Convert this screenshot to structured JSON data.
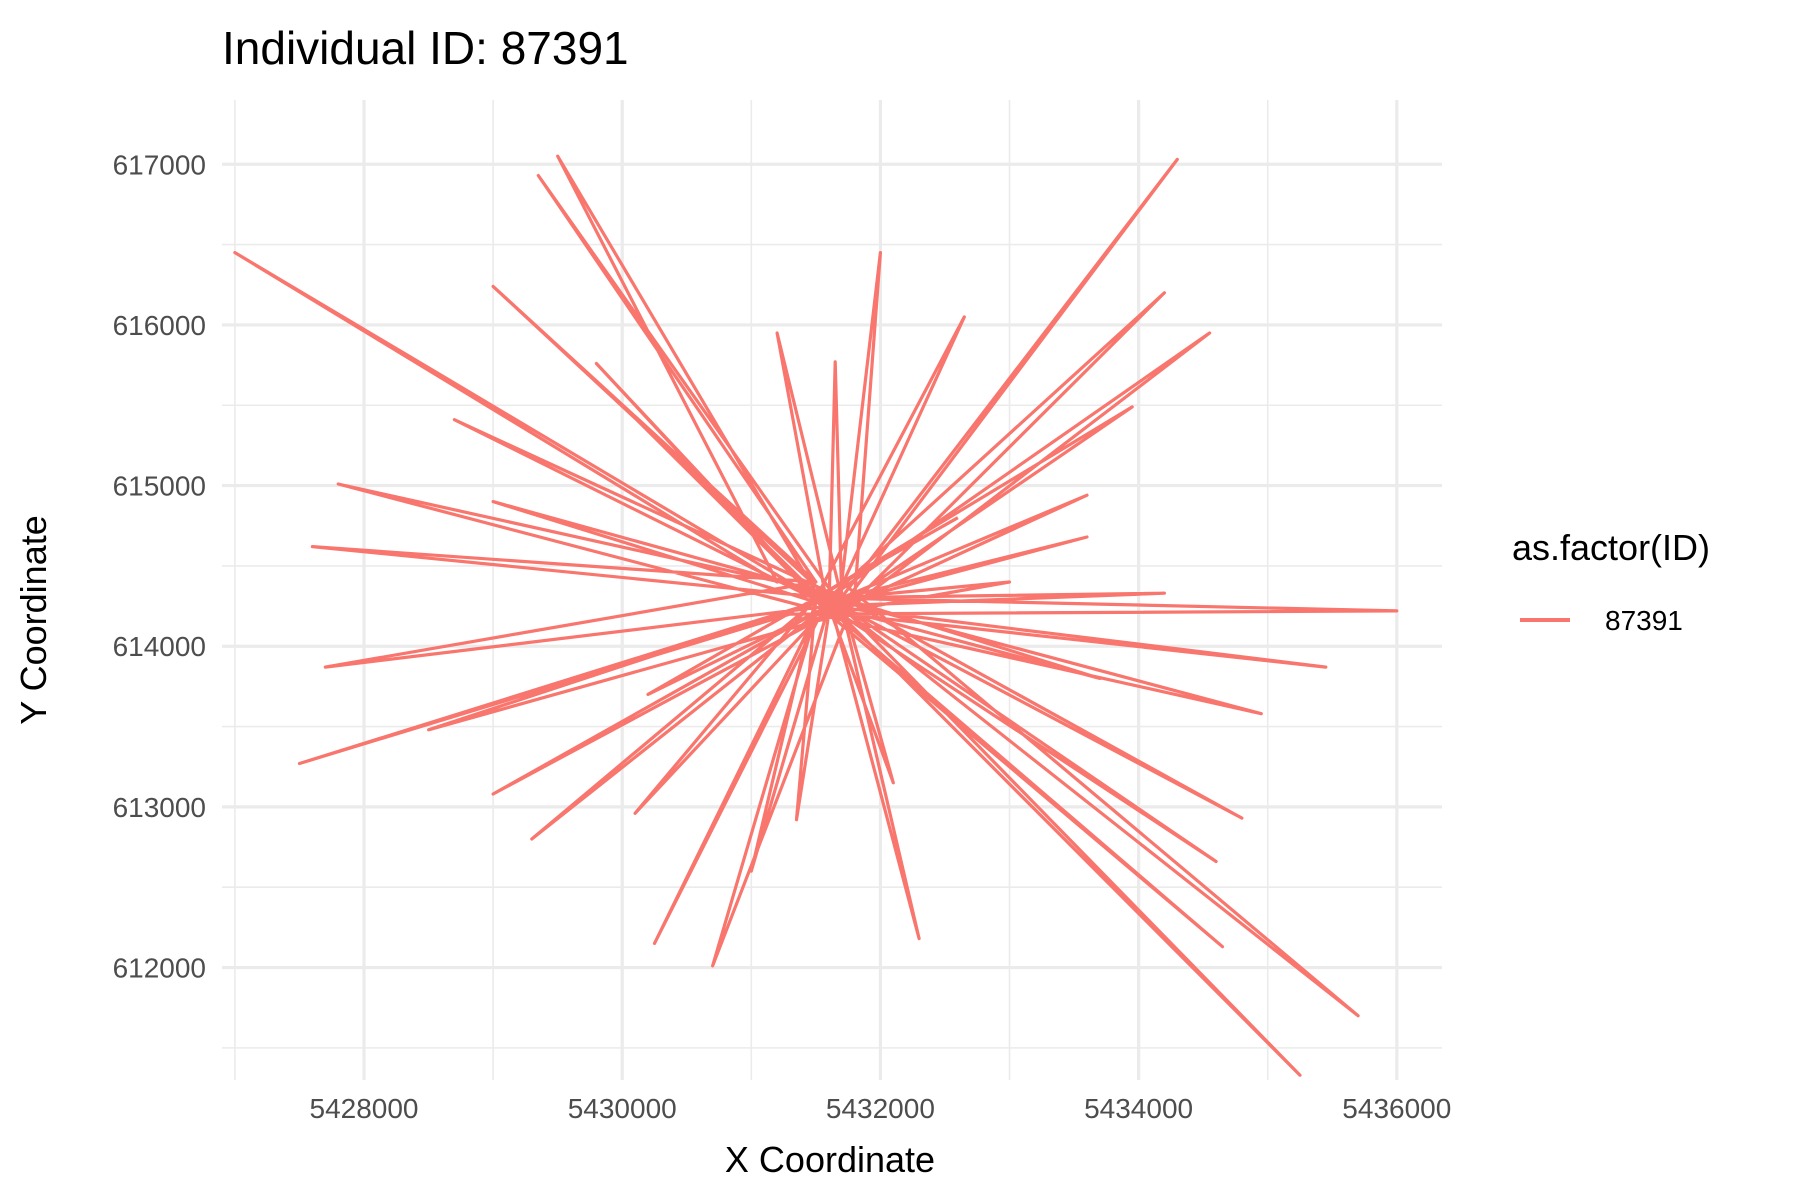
{
  "chart_data": {
    "type": "line",
    "title": "Individual ID: 87391",
    "xlabel": "X Coordinate",
    "ylabel": "Y Coordinate",
    "xlim": [
      5426900,
      5436350
    ],
    "ylim": [
      611300,
      617400
    ],
    "x_ticks": [
      5428000,
      5430000,
      5432000,
      5434000,
      5436000
    ],
    "x_tick_labels": [
      "5428000",
      "5430000",
      "5432000",
      "5434000",
      "5436000"
    ],
    "y_ticks": [
      612000,
      613000,
      614000,
      615000,
      616000,
      617000
    ],
    "y_tick_labels": [
      "612000",
      "613000",
      "614000",
      "615000",
      "616000",
      "617000"
    ],
    "grid": true,
    "legend": {
      "title": "as.factor(ID)",
      "position": "right"
    },
    "series": [
      {
        "name": "87391",
        "color": "#F8766D",
        "points": [
          [
            5431500,
            614300
          ],
          [
            5427000,
            616450
          ],
          [
            5431200,
            614400
          ],
          [
            5429500,
            617050
          ],
          [
            5431600,
            614200
          ],
          [
            5434300,
            617030
          ],
          [
            5431700,
            614250
          ],
          [
            5435250,
            611330
          ],
          [
            5431500,
            614350
          ],
          [
            5427800,
            615010
          ],
          [
            5431400,
            614250
          ],
          [
            5427500,
            613270
          ],
          [
            5431300,
            614200
          ],
          [
            5436000,
            614220
          ],
          [
            5431600,
            614300
          ],
          [
            5435700,
            611700
          ],
          [
            5431700,
            614400
          ],
          [
            5432000,
            616450
          ],
          [
            5431800,
            614300
          ],
          [
            5430700,
            612010
          ],
          [
            5431500,
            614200
          ],
          [
            5430250,
            612150
          ],
          [
            5431600,
            614300
          ],
          [
            5432300,
            612180
          ],
          [
            5431700,
            614250
          ],
          [
            5429350,
            616930
          ],
          [
            5431500,
            614400
          ],
          [
            5429000,
            616240
          ],
          [
            5431600,
            614300
          ],
          [
            5434200,
            616200
          ],
          [
            5431700,
            614200
          ],
          [
            5434550,
            615950
          ],
          [
            5431600,
            614300
          ],
          [
            5427600,
            614620
          ],
          [
            5431500,
            614400
          ],
          [
            5427700,
            613870
          ],
          [
            5431600,
            614250
          ],
          [
            5435450,
            613870
          ],
          [
            5431700,
            614200
          ],
          [
            5428500,
            613480
          ],
          [
            5431600,
            614300
          ],
          [
            5434950,
            613580
          ],
          [
            5431500,
            614200
          ],
          [
            5429300,
            612800
          ],
          [
            5431600,
            614350
          ],
          [
            5434800,
            612930
          ],
          [
            5431700,
            614250
          ],
          [
            5434600,
            612660
          ],
          [
            5431500,
            614300
          ],
          [
            5434650,
            612130
          ],
          [
            5431600,
            614200
          ],
          [
            5429000,
            613080
          ],
          [
            5431700,
            614300
          ],
          [
            5428700,
            615410
          ],
          [
            5431600,
            614250
          ],
          [
            5434200,
            614330
          ],
          [
            5431500,
            614300
          ],
          [
            5433950,
            615490
          ],
          [
            5431600,
            614200
          ],
          [
            5433600,
            614940
          ],
          [
            5431700,
            614300
          ],
          [
            5433600,
            614680
          ],
          [
            5431600,
            614250
          ],
          [
            5430100,
            612960
          ],
          [
            5431500,
            614300
          ],
          [
            5432650,
            616050
          ],
          [
            5431600,
            614200
          ],
          [
            5431200,
            615950
          ],
          [
            5431700,
            614300
          ],
          [
            5429000,
            614900
          ],
          [
            5431600,
            614250
          ],
          [
            5430000,
            615500
          ],
          [
            5431500,
            614300
          ],
          [
            5429800,
            615760
          ],
          [
            5431600,
            614200
          ],
          [
            5431650,
            615770
          ],
          [
            5431700,
            614300
          ],
          [
            5432100,
            613150
          ],
          [
            5431600,
            614250
          ],
          [
            5431000,
            612600
          ],
          [
            5431500,
            614300
          ],
          [
            5431350,
            612920
          ],
          [
            5431600,
            614200
          ],
          [
            5433000,
            614400
          ],
          [
            5431700,
            614300
          ],
          [
            5433700,
            613800
          ],
          [
            5431600,
            614250
          ],
          [
            5430200,
            613700
          ],
          [
            5431500,
            614300
          ],
          [
            5432600,
            614800
          ]
        ]
      }
    ]
  }
}
